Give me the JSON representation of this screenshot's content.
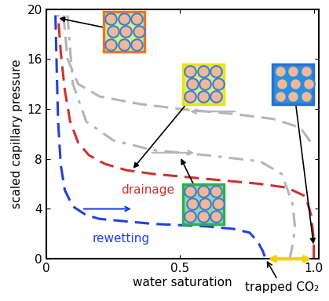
{
  "chart_data": {
    "type": "line",
    "xlabel": "water saturation",
    "ylabel": "scaled capillary pressure",
    "xlim": [
      0,
      1.02
    ],
    "ylim": [
      0,
      20
    ],
    "xticks": [
      0,
      0.5,
      {
        "value": 1.0,
        "label": "1.0"
      }
    ],
    "yticks": [
      0,
      4,
      8,
      12,
      16,
      20
    ],
    "grid": false,
    "series": [
      {
        "name": "drainage",
        "color": "#d0312d",
        "line_style": "dashed",
        "x": [
          1.0,
          1.0,
          0.99,
          0.97,
          0.9,
          0.8,
          0.7,
          0.6,
          0.5,
          0.4,
          0.3,
          0.22,
          0.16,
          0.12,
          0.09,
          0.07,
          0.055,
          0.045
        ],
        "values": [
          0,
          1.5,
          3.5,
          5.0,
          5.7,
          6.0,
          6.2,
          6.4,
          6.6,
          6.8,
          7.1,
          7.6,
          8.3,
          9.3,
          11.0,
          13.5,
          16.5,
          19.5
        ]
      },
      {
        "name": "rewetting",
        "color": "#2040e0",
        "line_style": "dashed",
        "x": [
          0.035,
          0.04,
          0.045,
          0.055,
          0.07,
          0.1,
          0.15,
          0.2,
          0.3,
          0.4,
          0.5,
          0.6,
          0.7,
          0.76,
          0.79,
          0.81,
          0.82
        ],
        "values": [
          19.5,
          15.0,
          11.0,
          7.5,
          5.5,
          4.2,
          3.5,
          3.2,
          3.0,
          2.8,
          2.7,
          2.6,
          2.4,
          2.1,
          1.4,
          0.6,
          0
        ]
      },
      {
        "color": "#b5b5b5",
        "line_style": "dashed",
        "x": [
          0.065,
          0.08,
          0.12,
          0.2,
          0.35,
          0.5,
          0.7,
          0.85,
          0.95,
          1.0
        ],
        "values": [
          19.5,
          16.0,
          14.0,
          13.0,
          12.4,
          12.0,
          11.6,
          11.2,
          10.5,
          9.0
        ]
      },
      {
        "color": "#b5b5b5",
        "line_style": "dashdot",
        "x": [
          0.08,
          0.1,
          0.15,
          0.25,
          0.4,
          0.6,
          0.8,
          0.88,
          0.92,
          0.93,
          0.92,
          0.91
        ],
        "values": [
          19.5,
          14.0,
          11.0,
          9.5,
          8.7,
          8.3,
          7.8,
          6.8,
          4.5,
          2.5,
          1.0,
          0
        ]
      }
    ],
    "annotations": [
      {
        "text": "trapped CO₂",
        "x_range": [
          0.82,
          1.0
        ],
        "color": "#f5d000"
      }
    ]
  }
}
